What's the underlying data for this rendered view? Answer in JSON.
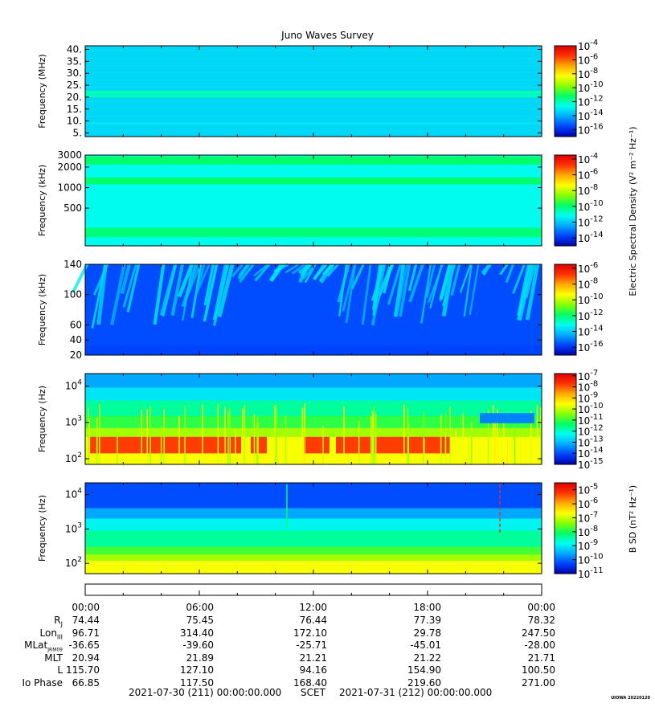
{
  "title": "Juno Waves Survey",
  "colors": {
    "scale": [
      "#0000a8",
      "#0044ff",
      "#00aaff",
      "#00ffee",
      "#00ff66",
      "#88ff00",
      "#ffff00",
      "#ffaa00",
      "#ff3300",
      "#dd0000"
    ]
  },
  "chart_data": [
    {
      "type": "heatmap",
      "panel": 1,
      "ylabel": "Frequency (MHz)",
      "y_ticks": [
        "40.",
        "35.",
        "30.",
        "25.",
        "20.",
        "15.",
        "10.",
        "5."
      ],
      "y_tick_values": [
        40,
        35,
        30,
        25,
        20,
        15,
        10,
        5
      ],
      "ylim": [
        3.5,
        41.5
      ],
      "yscale": "linear",
      "colorbar": {
        "ticks": [
          [
            "10",
            "-4"
          ],
          [
            "10",
            "-6"
          ],
          [
            "10",
            "-8"
          ],
          [
            "10",
            "-10"
          ],
          [
            "10",
            "-12"
          ],
          [
            "10",
            "-14"
          ],
          [
            "10",
            "-16"
          ]
        ],
        "range_exp": [
          -17,
          -4
        ]
      },
      "background_level": 0.28,
      "bands": [
        {
          "value": 21.3,
          "width": 1.4,
          "level": 0.38
        },
        {
          "value": 9,
          "width": 0.6,
          "level": 0.3
        }
      ]
    },
    {
      "type": "heatmap",
      "panel": 2,
      "ylabel": "Frequency (kHz)",
      "y_ticks": [
        "3000",
        "2000",
        "1000",
        "500"
      ],
      "y_tick_values": [
        3000,
        2000,
        1000,
        500
      ],
      "ylim": [
        140,
        3000
      ],
      "yscale": "log",
      "colorbar": {
        "label": "Electric Spectral Density (V² m⁻² Hz⁻¹)",
        "ticks": [
          [
            "10",
            "-4"
          ],
          [
            "10",
            "-6"
          ],
          [
            "10",
            "-8"
          ],
          [
            "10",
            "-10"
          ],
          [
            "10",
            "-12"
          ],
          [
            "10",
            "-14"
          ]
        ],
        "range_exp": [
          -15,
          -3.5
        ]
      },
      "background_level": 0.33,
      "bands": [
        {
          "value": 2500,
          "width": 0.06,
          "level": 0.44
        },
        {
          "value": 1250,
          "width": 0.05,
          "level": 0.44
        },
        {
          "value": 220,
          "width": 0.07,
          "level": 0.43
        }
      ]
    },
    {
      "type": "heatmap",
      "panel": 3,
      "ylabel": "Frequency (kHz)",
      "y_ticks": [
        "140",
        "100",
        "60",
        "40",
        "20"
      ],
      "y_tick_values": [
        140,
        100,
        60,
        40,
        20
      ],
      "ylim": [
        20,
        140
      ],
      "yscale": "linear",
      "colorbar": {
        "ticks": [
          [
            "10",
            "-6"
          ],
          [
            "10",
            "-8"
          ],
          [
            "10",
            "-10"
          ],
          [
            "10",
            "-12"
          ],
          [
            "10",
            "-14"
          ],
          [
            "10",
            "-16"
          ]
        ],
        "range_exp": [
          -17,
          -5.5
        ]
      },
      "background_level": 0.12,
      "bands": []
    },
    {
      "type": "heatmap",
      "panel": 4,
      "ylabel": "Frequency (Hz)",
      "y_ticks": [
        [
          "10",
          "4"
        ],
        [
          "10",
          "3"
        ],
        [
          "10",
          "2"
        ]
      ],
      "y_tick_values": [
        10000,
        1000,
        100
      ],
      "ylim": [
        70,
        22000
      ],
      "yscale": "log",
      "colorbar": {
        "ticks": [
          [
            "10",
            "-7"
          ],
          [
            "10",
            "-8"
          ],
          [
            "10",
            "-9"
          ],
          [
            "10",
            "-10"
          ],
          [
            "10",
            "-11"
          ],
          [
            "10",
            "-12"
          ],
          [
            "10",
            "-13"
          ],
          [
            "10",
            "-14"
          ],
          [
            "10",
            "-15"
          ]
        ],
        "range_exp": [
          -15,
          -6.8
        ]
      },
      "background_level": 0.35,
      "bands": []
    },
    {
      "type": "heatmap",
      "panel": 5,
      "ylabel": "Frequency (Hz)",
      "y_ticks": [
        [
          "10",
          "4"
        ],
        [
          "10",
          "3"
        ],
        [
          "10",
          "2"
        ]
      ],
      "y_tick_values": [
        10000,
        1000,
        100
      ],
      "ylim": [
        50,
        22000
      ],
      "yscale": "log",
      "colorbar": {
        "label": "B SD (nT² Hz⁻¹)",
        "ticks": [
          [
            "10",
            "-5"
          ],
          [
            "10",
            "-6"
          ],
          [
            "10",
            "-7"
          ],
          [
            "10",
            "-8"
          ],
          [
            "10",
            "-9"
          ],
          [
            "10",
            "-10"
          ],
          [
            "10",
            "-11"
          ]
        ],
        "range_exp": [
          -11,
          -4.5
        ]
      },
      "background_level": 0.3,
      "bands": []
    }
  ],
  "x_axis": {
    "ticks": [
      "00:00",
      "06:00",
      "12:00",
      "18:00",
      "00:00"
    ],
    "range_hours": [
      0,
      24
    ]
  },
  "ephemeris": {
    "labels": [
      "R",
      "Lon",
      "MLat",
      "MLT",
      "L",
      "Io Phase"
    ],
    "label_subs": [
      "J",
      "III",
      "JRM09",
      "",
      "",
      ""
    ],
    "rows": [
      [
        "74.44",
        "75.45",
        "76.44",
        "77.39",
        "78.32"
      ],
      [
        "96.71",
        "314.40",
        "172.10",
        "29.78",
        "247.50"
      ],
      [
        "-36.65",
        "-39.60",
        "-25.71",
        "-45.01",
        "-28.00"
      ],
      [
        "20.94",
        "21.89",
        "21.21",
        "21.22",
        "21.71"
      ],
      [
        "115.70",
        "127.10",
        "94.16",
        "154.90",
        "100.50"
      ],
      [
        "66.85",
        "117.50",
        "168.40",
        "219.60",
        "271.00"
      ]
    ]
  },
  "footer": {
    "start": "2021-07-30 (211) 00:00:00.000",
    "scet": "SCET",
    "end": "2021-07-31 (212) 00:00:00.000"
  },
  "stamp": "UIOWA 20220120"
}
